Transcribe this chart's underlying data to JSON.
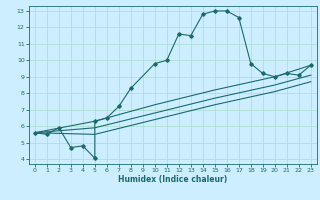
{
  "xlabel": "Humidex (Indice chaleur)",
  "bg_color": "#cceeff",
  "line_color": "#1a6b6b",
  "grid_color": "#aaddcc",
  "xlim": [
    -0.5,
    23.5
  ],
  "ylim": [
    3.7,
    13.3
  ],
  "xticks": [
    0,
    1,
    2,
    3,
    4,
    5,
    6,
    7,
    8,
    9,
    10,
    11,
    12,
    13,
    14,
    15,
    16,
    17,
    18,
    19,
    20,
    21,
    22,
    23
  ],
  "yticks": [
    4,
    5,
    6,
    7,
    8,
    9,
    10,
    11,
    12,
    13
  ],
  "lines": [
    {
      "x": [
        0,
        1,
        2,
        3,
        4,
        5,
        5,
        6,
        7,
        8,
        10,
        11,
        12,
        13,
        14,
        15,
        16,
        17,
        18,
        19,
        20,
        21,
        22,
        23
      ],
      "y": [
        5.6,
        5.5,
        5.9,
        4.7,
        4.8,
        4.05,
        6.3,
        6.5,
        7.2,
        8.3,
        9.8,
        10.0,
        11.6,
        11.5,
        12.8,
        13.0,
        13.0,
        12.6,
        9.8,
        9.2,
        9.0,
        9.2,
        9.1,
        9.7
      ],
      "has_markers": true
    },
    {
      "x": [
        0,
        5,
        10,
        15,
        20,
        23
      ],
      "y": [
        5.6,
        6.3,
        7.3,
        8.2,
        9.0,
        9.7
      ],
      "has_markers": false
    },
    {
      "x": [
        0,
        5,
        10,
        15,
        20,
        23
      ],
      "y": [
        5.6,
        5.9,
        6.8,
        7.7,
        8.5,
        9.1
      ],
      "has_markers": false
    },
    {
      "x": [
        0,
        5,
        10,
        15,
        20,
        23
      ],
      "y": [
        5.6,
        5.5,
        6.4,
        7.3,
        8.1,
        8.7
      ],
      "has_markers": false
    }
  ]
}
